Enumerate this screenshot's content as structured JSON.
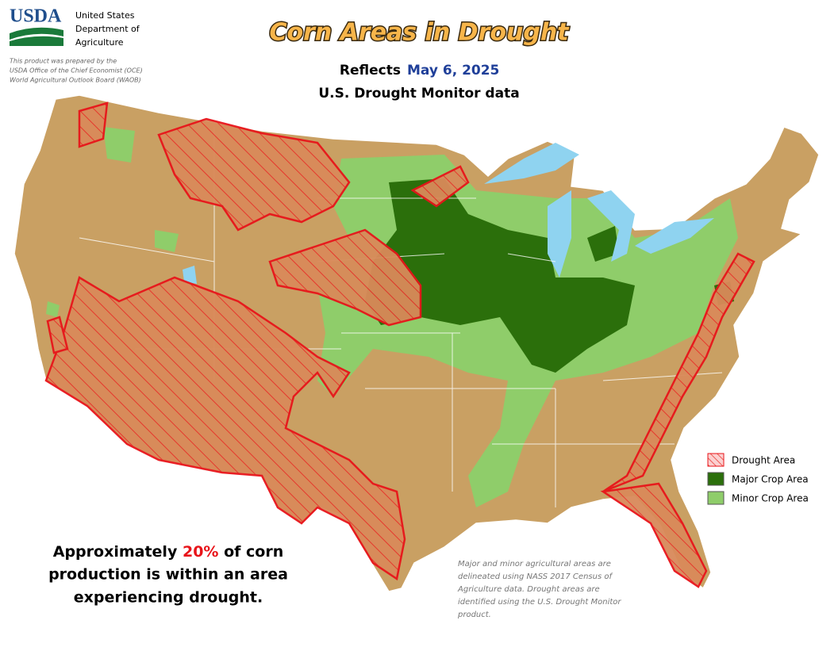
{
  "header": {
    "logo": "USDA",
    "agency_lines": [
      "United States",
      "Department of",
      "Agriculture"
    ],
    "credit_lines": [
      "This product was prepared by the",
      "USDA Office of the Chief Economist (OCE)",
      "World Agricultural Outlook Board (WAOB)"
    ]
  },
  "title": "Corn Areas in Drought",
  "subtitle": {
    "prefix": "Reflects",
    "date": "May 6, 2025",
    "source": "U.S. Drought Monitor data"
  },
  "legend": [
    "Drought Area",
    "Major Crop Area",
    "Minor Crop Area"
  ],
  "summary": {
    "before": "Approximately",
    "highlight": "20%",
    "after": "of corn",
    "lines": [
      "production is within an area",
      "experiencing drought."
    ]
  },
  "note_lines": [
    "Major and minor agricultural areas are",
    "delineated using NASS 2017 Census of",
    "Agriculture data.  Drought areas are",
    "identified using the U.S. Drought Monitor",
    "product."
  ]
}
